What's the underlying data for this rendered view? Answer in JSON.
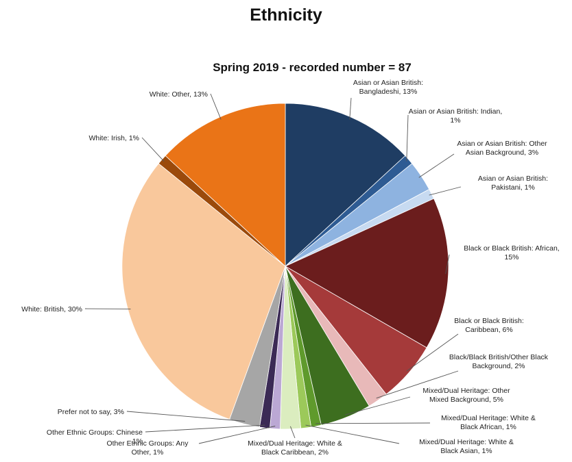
{
  "header": {
    "title": "Ethnicity"
  },
  "chart_data": {
    "type": "pie",
    "title": "Spring 2019 - recorded number = 87",
    "slices": [
      {
        "label": [
          "Asian or Asian British:",
          "Bangladeshi, 13%"
        ],
        "value": 13,
        "color": "#1f3d63"
      },
      {
        "label": [
          "Asian or Asian British: Indian,",
          "1%"
        ],
        "value": 1,
        "color": "#2e5b93"
      },
      {
        "label": [
          "Asian or Asian British: Other",
          "Asian Background, 3%"
        ],
        "value": 3,
        "color": "#8eb3e0"
      },
      {
        "label": [
          "Asian or Asian British:",
          "Pakistani, 1%"
        ],
        "value": 1,
        "color": "#c7daf1"
      },
      {
        "label": [
          "Black or Black British: African,",
          "15%"
        ],
        "value": 15,
        "color": "#6b1d1d"
      },
      {
        "label": [
          "Black or Black British:",
          "Caribbean, 6%"
        ],
        "value": 6,
        "color": "#a53a3a"
      },
      {
        "label": [
          "Black/Black British/Other Black",
          "Background, 2%"
        ],
        "value": 2,
        "color": "#e8b9b9"
      },
      {
        "label": [
          "Mixed/Dual Heritage: Other",
          "Mixed Background, 5%"
        ],
        "value": 5,
        "color": "#3d6e1f"
      },
      {
        "label": [
          "Mixed/Dual Heritage: White &",
          "Black African, 1%"
        ],
        "value": 1,
        "color": "#5f9a2c"
      },
      {
        "label": [
          "Mixed/Dual Heritage: White &",
          "Black Asian, 1%"
        ],
        "value": 1,
        "color": "#9cc95a"
      },
      {
        "label": [
          "Mixed/Dual Heritage: White &",
          "Black Caribbean, 2%"
        ],
        "value": 2,
        "color": "#dbedbf"
      },
      {
        "label": [
          "Other Ethnic Groups: Any",
          "Other, 1%"
        ],
        "value": 1,
        "color": "#bba8d4"
      },
      {
        "label": [
          "Other Ethnic Groups: Chinese",
          "1%"
        ],
        "value": 1,
        "color": "#3b2a55"
      },
      {
        "label": [
          "Prefer not to say, 3%"
        ],
        "value": 3,
        "color": "#a6a6a6"
      },
      {
        "label": [
          "White: British, 30%"
        ],
        "value": 30,
        "color": "#f9c89c"
      },
      {
        "label": [
          "White: Irish, 1%"
        ],
        "value": 1,
        "color": "#9b4a0b"
      },
      {
        "label": [
          "White: Other, 13%"
        ],
        "value": 13,
        "color": "#ea7417"
      }
    ]
  }
}
